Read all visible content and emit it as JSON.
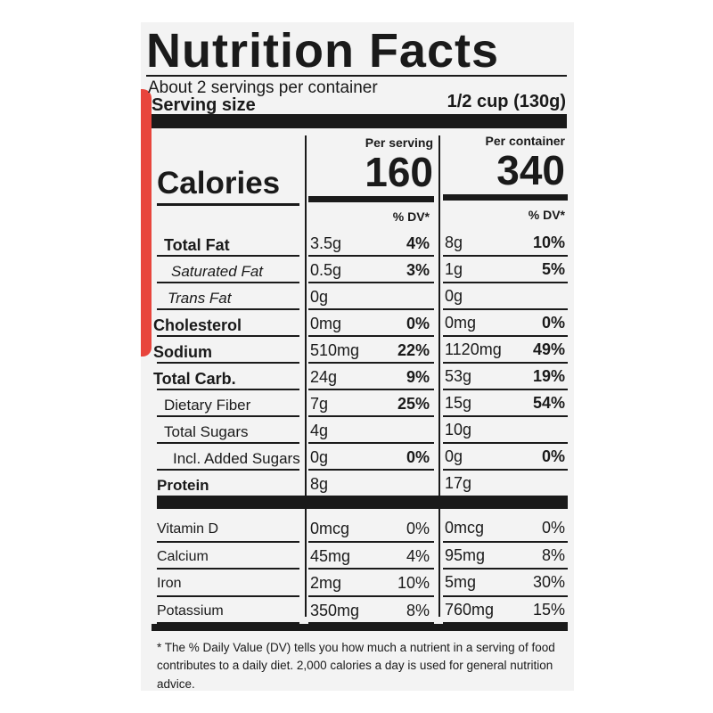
{
  "header": {
    "title": "Nutrition Facts",
    "servings": "About 2 servings per container",
    "serving_size_label": "Serving size",
    "serving_size": "1/2 cup (130g)"
  },
  "calories": {
    "label": "Calories",
    "per_serving_label": "Per serving",
    "per_serving": "160",
    "per_container_label": "Per container",
    "per_container": "340",
    "dv_label": "% DV*"
  },
  "nutrients": [
    {
      "name": "Total Fat",
      "serving": "3.5g",
      "serving_dv": "4%",
      "container": "8g",
      "container_dv": "10%"
    },
    {
      "name": "Saturated Fat",
      "serving": "0.5g",
      "serving_dv": "3%",
      "container": "1g",
      "container_dv": "5%"
    },
    {
      "name": "Trans Fat",
      "serving": "0g",
      "container": "0g"
    },
    {
      "name": "Cholesterol",
      "serving": "0mg",
      "serving_dv": "0%",
      "container": "0mg",
      "container_dv": "0%"
    },
    {
      "name": "Sodium",
      "serving": "510mg",
      "serving_dv": "22%",
      "container": "1120mg",
      "container_dv": "49%"
    },
    {
      "name": "Total Carb.",
      "serving": "24g",
      "serving_dv": "9%",
      "container": "53g",
      "container_dv": "19%"
    },
    {
      "name": "Dietary Fiber",
      "serving": "7g",
      "serving_dv": "25%",
      "container": "15g",
      "container_dv": "54%"
    },
    {
      "name": "Total Sugars",
      "serving": "4g",
      "container": "10g"
    },
    {
      "name": "Incl. Added Sugars",
      "serving": "0g",
      "serving_dv": "0%",
      "container": "0g",
      "container_dv": "0%"
    },
    {
      "name": "Protein",
      "serving": "8g",
      "container": "17g"
    }
  ],
  "vitamins": [
    {
      "name": "Vitamin D",
      "serving": "0mcg",
      "serving_dv": "0%",
      "container": "0mcg",
      "container_dv": "0%"
    },
    {
      "name": "Calcium",
      "serving": "45mg",
      "serving_dv": "4%",
      "container": "95mg",
      "container_dv": "8%"
    },
    {
      "name": "Iron",
      "serving": "2mg",
      "serving_dv": "10%",
      "container": "5mg",
      "container_dv": "30%"
    },
    {
      "name": "Potassium",
      "serving": "350mg",
      "serving_dv": "8%",
      "container": "760mg",
      "container_dv": "15%"
    }
  ],
  "footnote": "* The % Daily Value (DV) tells you how much a nutrient in a serving of food contributes to a daily diet. 2,000 calories a day is used for general nutrition advice."
}
